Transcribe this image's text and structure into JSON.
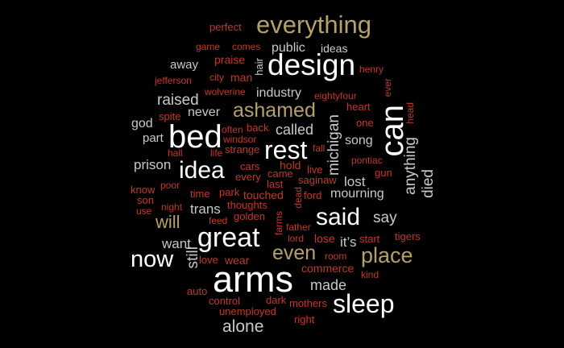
{
  "palette": {
    "white": "#ffffff",
    "light_gray": "#c9c9c9",
    "tan": "#b5a06a",
    "red": "#c0392b"
  },
  "words": [
    {
      "text": "everything",
      "color": "tan"
    },
    {
      "text": "design",
      "color": "white"
    },
    {
      "text": "perfect",
      "color": "red"
    },
    {
      "text": "game",
      "color": "red"
    },
    {
      "text": "comes",
      "color": "red"
    },
    {
      "text": "public",
      "color": "light_gray"
    },
    {
      "text": "ideas",
      "color": "light_gray"
    },
    {
      "text": "away",
      "color": "light_gray"
    },
    {
      "text": "praise",
      "color": "red"
    },
    {
      "text": "hair",
      "color": "light_gray"
    },
    {
      "text": "henry",
      "color": "red"
    },
    {
      "text": "jefferson",
      "color": "red"
    },
    {
      "text": "city",
      "color": "red"
    },
    {
      "text": "man",
      "color": "red"
    },
    {
      "text": "ever",
      "color": "red"
    },
    {
      "text": "wolverine",
      "color": "red"
    },
    {
      "text": "industry",
      "color": "light_gray"
    },
    {
      "text": "eightyfour",
      "color": "red"
    },
    {
      "text": "raised",
      "color": "light_gray"
    },
    {
      "text": "heart",
      "color": "red"
    },
    {
      "text": "head",
      "color": "red"
    },
    {
      "text": "ashamed",
      "color": "tan"
    },
    {
      "text": "never",
      "color": "light_gray"
    },
    {
      "text": "spite",
      "color": "red"
    },
    {
      "text": "can",
      "color": "white"
    },
    {
      "text": "god",
      "color": "light_gray"
    },
    {
      "text": "bed",
      "color": "white"
    },
    {
      "text": "often",
      "color": "red"
    },
    {
      "text": "back",
      "color": "red"
    },
    {
      "text": "called",
      "color": "light_gray"
    },
    {
      "text": "michigan",
      "color": "light_gray"
    },
    {
      "text": "one",
      "color": "red"
    },
    {
      "text": "part",
      "color": "light_gray"
    },
    {
      "text": "windsor",
      "color": "red"
    },
    {
      "text": "rest",
      "color": "white"
    },
    {
      "text": "song",
      "color": "light_gray"
    },
    {
      "text": "hall",
      "color": "red"
    },
    {
      "text": "life",
      "color": "red"
    },
    {
      "text": "strange",
      "color": "red"
    },
    {
      "text": "fall",
      "color": "red"
    },
    {
      "text": "anything",
      "color": "light_gray"
    },
    {
      "text": "prison",
      "color": "light_gray"
    },
    {
      "text": "idea",
      "color": "white"
    },
    {
      "text": "cars",
      "color": "red"
    },
    {
      "text": "hold",
      "color": "red"
    },
    {
      "text": "pontiac",
      "color": "red"
    },
    {
      "text": "died",
      "color": "light_gray"
    },
    {
      "text": "every",
      "color": "red"
    },
    {
      "text": "came",
      "color": "red"
    },
    {
      "text": "live",
      "color": "red"
    },
    {
      "text": "saginaw",
      "color": "red"
    },
    {
      "text": "gun",
      "color": "red"
    },
    {
      "text": "know",
      "color": "red"
    },
    {
      "text": "poor",
      "color": "red"
    },
    {
      "text": "last",
      "color": "red"
    },
    {
      "text": "lost",
      "color": "light_gray"
    },
    {
      "text": "time",
      "color": "red"
    },
    {
      "text": "park",
      "color": "red"
    },
    {
      "text": "touched",
      "color": "red"
    },
    {
      "text": "ford",
      "color": "red"
    },
    {
      "text": "mourning",
      "color": "light_gray"
    },
    {
      "text": "son",
      "color": "red"
    },
    {
      "text": "dead",
      "color": "red"
    },
    {
      "text": "night",
      "color": "red"
    },
    {
      "text": "thoughts",
      "color": "red"
    },
    {
      "text": "use",
      "color": "red"
    },
    {
      "text": "trans",
      "color": "light_gray"
    },
    {
      "text": "golden",
      "color": "red"
    },
    {
      "text": "said",
      "color": "white"
    },
    {
      "text": "say",
      "color": "light_gray"
    },
    {
      "text": "will",
      "color": "tan"
    },
    {
      "text": "feed",
      "color": "red"
    },
    {
      "text": "farms",
      "color": "red"
    },
    {
      "text": "father",
      "color": "red"
    },
    {
      "text": "great",
      "color": "white"
    },
    {
      "text": "lord",
      "color": "red"
    },
    {
      "text": "lose",
      "color": "red"
    },
    {
      "text": "start",
      "color": "red"
    },
    {
      "text": "tigers",
      "color": "red"
    },
    {
      "text": "want",
      "color": "light_gray"
    },
    {
      "text": "it’s",
      "color": "light_gray"
    },
    {
      "text": "still",
      "color": "light_gray"
    },
    {
      "text": "even",
      "color": "tan"
    },
    {
      "text": "place",
      "color": "tan"
    },
    {
      "text": "now",
      "color": "white"
    },
    {
      "text": "love",
      "color": "red"
    },
    {
      "text": "wear",
      "color": "red"
    },
    {
      "text": "room",
      "color": "red"
    },
    {
      "text": "commerce",
      "color": "red"
    },
    {
      "text": "kind",
      "color": "red"
    },
    {
      "text": "arms",
      "color": "white"
    },
    {
      "text": "made",
      "color": "light_gray"
    },
    {
      "text": "auto",
      "color": "red"
    },
    {
      "text": "control",
      "color": "red"
    },
    {
      "text": "dark",
      "color": "red"
    },
    {
      "text": "mothers",
      "color": "red"
    },
    {
      "text": "sleep",
      "color": "white"
    },
    {
      "text": "unemployed",
      "color": "red"
    },
    {
      "text": "right",
      "color": "red"
    },
    {
      "text": "alone",
      "color": "light_gray"
    }
  ]
}
